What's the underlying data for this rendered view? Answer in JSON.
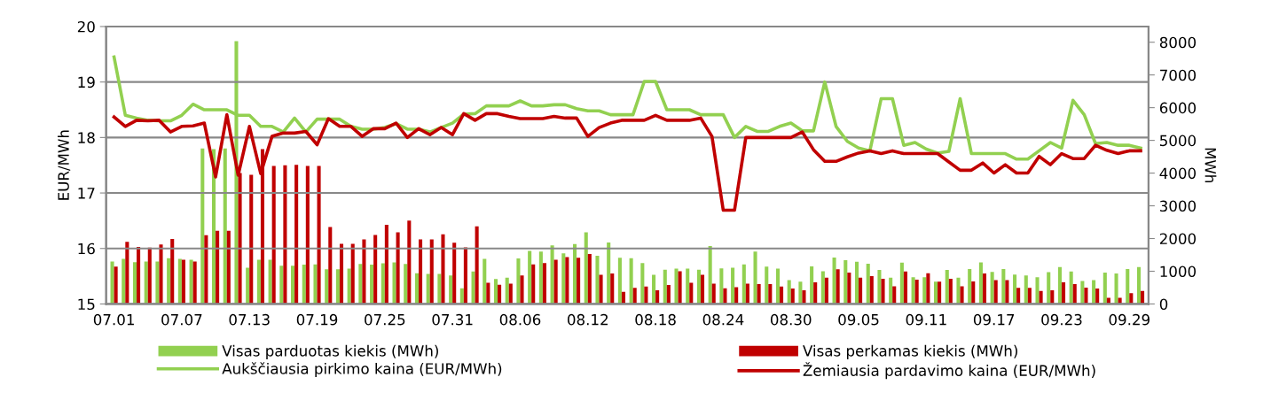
{
  "chart_data": {
    "type": "bar",
    "ylabel": "EUR/MWh",
    "y2label": "MWh",
    "categories": [
      "07.01",
      null,
      null,
      null,
      null,
      null,
      "07.07",
      null,
      null,
      null,
      null,
      null,
      "07.13",
      null,
      null,
      null,
      null,
      null,
      "07.19",
      null,
      null,
      null,
      null,
      null,
      "07.25",
      null,
      null,
      null,
      null,
      null,
      "07.31",
      null,
      null,
      null,
      null,
      null,
      "08.06",
      null,
      null,
      null,
      null,
      null,
      "08.12",
      null,
      null,
      null,
      null,
      null,
      "08.18",
      null,
      null,
      null,
      null,
      null,
      "08.24",
      null,
      null,
      null,
      null,
      null,
      "08.30",
      null,
      null,
      null,
      null,
      null,
      "09.05",
      null,
      null,
      null,
      null,
      null,
      "09.11",
      null,
      null,
      null,
      null,
      null,
      "09.17",
      null,
      null,
      null,
      null,
      null,
      "09.23",
      null,
      null,
      null,
      null,
      null,
      "09.29",
      null
    ],
    "series": [
      {
        "name": "Visas parduotas kiekis (MWh)",
        "axis": "y2",
        "color": "#92d050",
        "values": [
          1300,
          1380,
          1280,
          1300,
          1300,
          1400,
          1380,
          1350,
          4750,
          4730,
          4750,
          8030,
          1110,
          1350,
          1350,
          1170,
          1170,
          1200,
          1210,
          1060,
          1060,
          1080,
          1220,
          1200,
          1240,
          1270,
          1220,
          940,
          920,
          920,
          870,
          480,
          990,
          1380,
          760,
          800,
          1390,
          1620,
          1600,
          1790,
          1550,
          1830,
          2190,
          1470,
          1880,
          1410,
          1400,
          1250,
          890,
          1050,
          1080,
          1080,
          1050,
          1770,
          1090,
          1110,
          1210,
          1600,
          1140,
          1080,
          730,
          680,
          1150,
          1000,
          1420,
          1340,
          1290,
          1230,
          1040,
          800,
          1260,
          820,
          820,
          680,
          1040,
          800,
          1070,
          1270,
          980,
          1070,
          900,
          870,
          820,
          970,
          1130,
          990,
          700,
          730,
          960,
          930,
          1070,
          1130
        ]
      },
      {
        "name": "Visas perkamas kiekis (MWh)",
        "axis": "y2",
        "color": "#c00000",
        "values": [
          1140,
          1900,
          1740,
          1720,
          1820,
          1990,
          1350,
          1300,
          2100,
          2240,
          2240,
          4000,
          3950,
          4730,
          4220,
          4240,
          4250,
          4220,
          4220,
          2350,
          1840,
          1840,
          1970,
          2110,
          2420,
          2190,
          2550,
          1970,
          1970,
          2130,
          1870,
          1730,
          2370,
          650,
          590,
          620,
          870,
          1210,
          1250,
          1350,
          1430,
          1410,
          1530,
          890,
          930,
          370,
          490,
          530,
          420,
          580,
          1000,
          650,
          890,
          620,
          480,
          510,
          620,
          610,
          610,
          530,
          470,
          420,
          660,
          800,
          1060,
          960,
          800,
          850,
          770,
          540,
          990,
          740,
          940,
          680,
          770,
          540,
          690,
          930,
          730,
          730,
          490,
          490,
          400,
          420,
          660,
          610,
          500,
          470,
          190,
          190,
          330,
          400
        ]
      },
      {
        "name": "Aukščiausia pirkimo kaina (EUR/MWh)",
        "type": "line",
        "color": "#92d050",
        "values": [
          19.45,
          18.4,
          18.35,
          18.31,
          18.3,
          18.3,
          18.4,
          18.6,
          18.5,
          18.5,
          18.5,
          18.4,
          18.4,
          18.2,
          18.2,
          18.1,
          18.35,
          18.1,
          18.33,
          18.33,
          18.33,
          18.2,
          18.15,
          18.15,
          18.18,
          18.25,
          18.15,
          18.15,
          18.1,
          18.18,
          18.26,
          18.42,
          18.43,
          18.57,
          18.57,
          18.57,
          18.66,
          18.57,
          18.57,
          18.59,
          18.59,
          18.52,
          18.48,
          18.48,
          18.41,
          18.41,
          18.41,
          19.01,
          19.01,
          18.5,
          18.5,
          18.5,
          18.41,
          18.41,
          18.41,
          18.0,
          18.2,
          18.11,
          18.11,
          18.2,
          18.26,
          18.12,
          18.12,
          19.0,
          18.2,
          17.93,
          17.81,
          17.76,
          18.7,
          18.7,
          17.86,
          17.91,
          17.79,
          17.72,
          17.75,
          18.7,
          17.71,
          17.71,
          17.71,
          17.71,
          17.61,
          17.61,
          17.76,
          17.91,
          17.81,
          18.67,
          18.41,
          17.89,
          17.91,
          17.86,
          17.86,
          17.81
        ]
      },
      {
        "name": "Žemiausia pardavimo kaina (EUR/MWh)",
        "type": "line",
        "color": "#c00000",
        "values": [
          18.37,
          18.2,
          18.31,
          18.3,
          18.31,
          18.1,
          18.2,
          18.21,
          18.26,
          17.29,
          18.41,
          17.32,
          18.2,
          17.35,
          18.02,
          18.08,
          18.08,
          18.11,
          17.87,
          18.34,
          18.2,
          18.2,
          18.02,
          18.16,
          18.16,
          18.26,
          18.0,
          18.16,
          18.05,
          18.18,
          18.05,
          18.43,
          18.31,
          18.43,
          18.43,
          18.38,
          18.34,
          18.34,
          18.34,
          18.38,
          18.35,
          18.35,
          18.02,
          18.18,
          18.26,
          18.31,
          18.31,
          18.31,
          18.4,
          18.31,
          18.31,
          18.31,
          18.35,
          18.02,
          16.69,
          16.69,
          18.0,
          18.0,
          18.0,
          18.0,
          18.0,
          18.1,
          17.78,
          17.57,
          17.57,
          17.65,
          17.72,
          17.76,
          17.71,
          17.76,
          17.71,
          17.71,
          17.71,
          17.71,
          17.56,
          17.41,
          17.41,
          17.54,
          17.36,
          17.51,
          17.36,
          17.36,
          17.66,
          17.51,
          17.71,
          17.62,
          17.62,
          17.86,
          17.77,
          17.71,
          17.76,
          17.76
        ]
      }
    ],
    "ylim": [
      15,
      20
    ],
    "yticks": [
      15,
      16,
      17,
      18,
      19,
      20
    ],
    "y2lim": [
      0,
      8480
    ],
    "y2ticks": [
      0,
      1000,
      2000,
      3000,
      4000,
      5000,
      6000,
      7000,
      8000
    ],
    "grid": "y",
    "legend": "bottom"
  }
}
